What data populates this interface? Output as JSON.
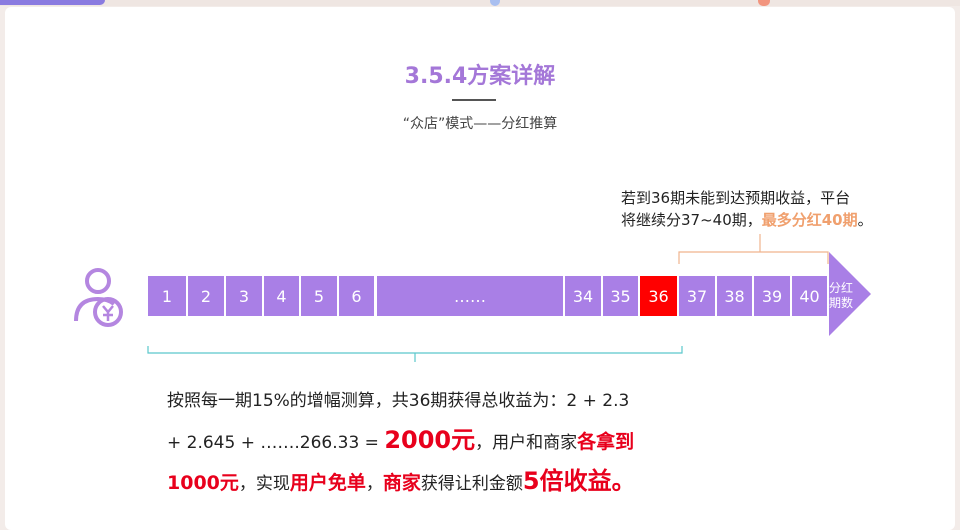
{
  "title": "3.5.4方案详解",
  "subtitle": "“众店”模式——分红推算",
  "note": {
    "line1": "若到36期未能到达预期收益，平台",
    "line2a": "将继续分37~40期，",
    "line2b": "最多分红40期",
    "line2c": "。"
  },
  "periods": [
    "1",
    "2",
    "3",
    "4",
    "5",
    "6",
    "……",
    "34",
    "35",
    "36",
    "37",
    "38",
    "39",
    "40"
  ],
  "highlight_period": "36",
  "arrow_label": {
    "l1": "分红",
    "l2": "期数"
  },
  "body": {
    "l1": "按照每一期15%的增幅测算，共36期获得总收益为：2 + 2.3",
    "l2a": "+ 2.645 + …….266.33 = ",
    "l2b": "2000元",
    "l2c": "，用户和商家",
    "l2d": "各拿到",
    "l3a": "1000元",
    "l3b": "，实现",
    "l3c": "用户免单",
    "l3d": "，",
    "l3e": "商家",
    "l3f": "获得让利金额",
    "l3g": "5倍收益。"
  },
  "colors": {
    "accent": "#a97fe6",
    "highlight": "#ff0000",
    "emphasis": "#e8001c",
    "note_emphasis": "#f0a06e"
  }
}
